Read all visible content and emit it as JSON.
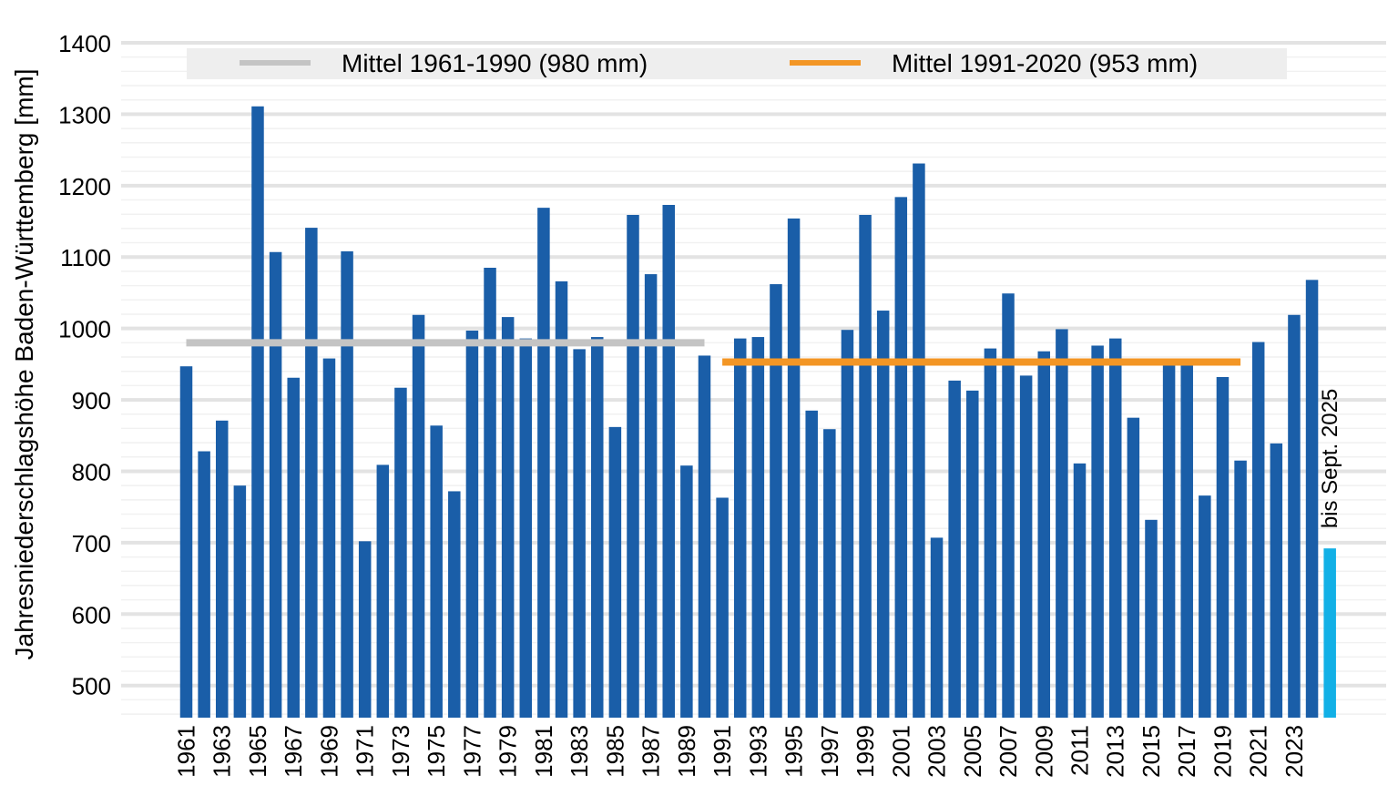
{
  "chart_data": {
    "type": "bar",
    "title": "",
    "xlabel": "",
    "ylabel": "Jahresniederschlagshöhe Baden-Württemberg [mm]",
    "ylim": [
      455,
      1400
    ],
    "yticks": [
      500,
      600,
      700,
      800,
      900,
      1000,
      1100,
      1200,
      1300,
      1400
    ],
    "grid": true,
    "categories": [
      "1961",
      "1962",
      "1963",
      "1964",
      "1965",
      "1966",
      "1967",
      "1968",
      "1969",
      "1970",
      "1971",
      "1972",
      "1973",
      "1974",
      "1975",
      "1976",
      "1977",
      "1978",
      "1979",
      "1980",
      "1981",
      "1982",
      "1983",
      "1984",
      "1985",
      "1986",
      "1987",
      "1988",
      "1989",
      "1990",
      "1991",
      "1992",
      "1993",
      "1994",
      "1995",
      "1996",
      "1997",
      "1998",
      "1999",
      "2000",
      "2001",
      "2002",
      "2003",
      "2004",
      "2005",
      "2006",
      "2007",
      "2008",
      "2009",
      "2010",
      "2011",
      "2012",
      "2013",
      "2014",
      "2015",
      "2016",
      "2017",
      "2018",
      "2019",
      "2020",
      "2021",
      "2022",
      "2023",
      "2024",
      "2025"
    ],
    "xtick_labels": [
      "1961",
      "1963",
      "1965",
      "1967",
      "1969",
      "1971",
      "1973",
      "1975",
      "1977",
      "1979",
      "1981",
      "1983",
      "1985",
      "1987",
      "1989",
      "1991",
      "1993",
      "1995",
      "1997",
      "1999",
      "2001",
      "2003",
      "2005",
      "2007",
      "2009",
      "2011",
      "2013",
      "2015",
      "2017",
      "2019",
      "2021",
      "2023"
    ],
    "values": [
      947,
      828,
      871,
      780,
      1311,
      1107,
      931,
      1141,
      958,
      1108,
      702,
      809,
      917,
      1019,
      864,
      772,
      997,
      1085,
      1016,
      986,
      1169,
      1066,
      971,
      988,
      862,
      1159,
      1076,
      1173,
      808,
      962,
      763,
      986,
      988,
      1062,
      1154,
      885,
      859,
      998,
      1159,
      1025,
      1184,
      1231,
      707,
      927,
      913,
      972,
      1049,
      934,
      968,
      999,
      811,
      976,
      986,
      875,
      732,
      950,
      950,
      766,
      932,
      815,
      981,
      839,
      1019,
      1068,
      692
    ],
    "bar_color": "#1a5ea8",
    "highlight_color": "#12b0e6",
    "highlight_category": "2025",
    "annotation": "bis Sept. 2025",
    "legend": {
      "position": "top",
      "entries": [
        {
          "label": "Mittel 1961-1990 (980 mm)",
          "color": "#c4c4c4"
        },
        {
          "label": "Mittel 1991-2020 (953 mm)",
          "color": "#f39625"
        }
      ]
    },
    "reference_lines": [
      {
        "name": "Mittel 1961-1990",
        "value": 980,
        "from": "1961",
        "to": "1990",
        "color": "#c4c4c4"
      },
      {
        "name": "Mittel 1991-2020",
        "value": 953,
        "from": "1991",
        "to": "2020",
        "color": "#f39625"
      }
    ]
  }
}
